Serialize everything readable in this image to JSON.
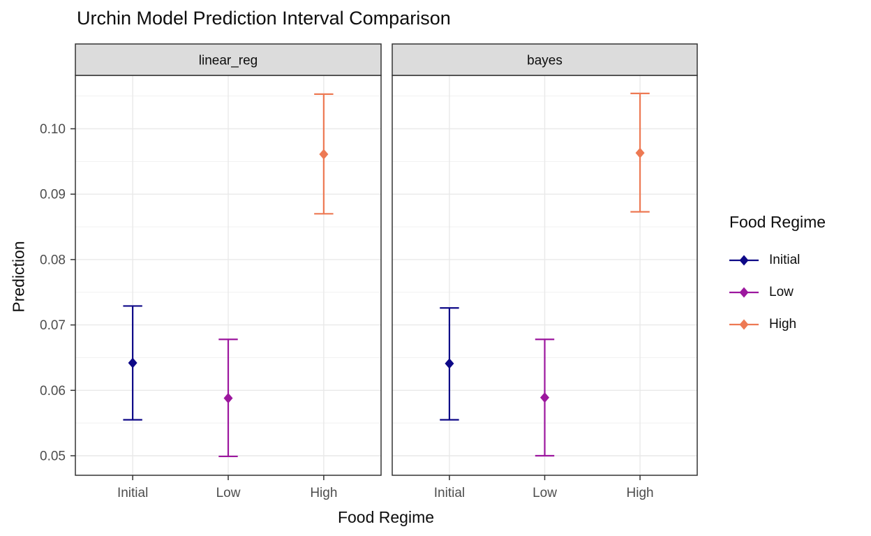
{
  "title": "Urchin Model Prediction Interval Comparison",
  "axes": {
    "x": {
      "title": "Food Regime",
      "categories": [
        "Initial",
        "Low",
        "High"
      ]
    },
    "y": {
      "title": "Prediction",
      "tick_labels": [
        "0.05",
        "0.06",
        "0.07",
        "0.08",
        "0.09",
        "0.10"
      ],
      "tick_values": [
        0.05,
        0.06,
        0.07,
        0.08,
        0.09,
        0.1
      ],
      "minor_values": [
        0.055,
        0.065,
        0.075,
        0.085,
        0.095,
        0.105
      ]
    }
  },
  "legend": {
    "title": "Food Regime",
    "items": [
      {
        "label": "Initial",
        "color": "#0D0887"
      },
      {
        "label": "Low",
        "color": "#9C179E"
      },
      {
        "label": "High",
        "color": "#ED7953"
      }
    ]
  },
  "chart_data": {
    "type": "scatter",
    "subtype": "point-with-errorbar",
    "title": "Urchin Model Prediction Interval Comparison",
    "xlabel": "Food Regime",
    "ylabel": "Prediction",
    "ylim": [
      0.047,
      0.108
    ],
    "grid": true,
    "legend_position": "right",
    "categories": [
      "Initial",
      "Low",
      "High"
    ],
    "facets": [
      {
        "label": "linear_reg",
        "points": [
          {
            "category": "Initial",
            "color": "#0D0887",
            "pred": 0.0642,
            "lower": 0.0555,
            "upper": 0.0729
          },
          {
            "category": "Low",
            "color": "#9C179E",
            "pred": 0.0588,
            "lower": 0.0499,
            "upper": 0.0678
          },
          {
            "category": "High",
            "color": "#ED7953",
            "pred": 0.0961,
            "lower": 0.087,
            "upper": 0.1053
          }
        ]
      },
      {
        "label": "bayes",
        "points": [
          {
            "category": "Initial",
            "color": "#0D0887",
            "pred": 0.0641,
            "lower": 0.0555,
            "upper": 0.0726
          },
          {
            "category": "Low",
            "color": "#9C179E",
            "pred": 0.0589,
            "lower": 0.05,
            "upper": 0.0678
          },
          {
            "category": "High",
            "color": "#ED7953",
            "pred": 0.0963,
            "lower": 0.0873,
            "upper": 0.1054
          }
        ]
      }
    ]
  },
  "style_colors": {
    "strip_fill": "#DCDCDC",
    "strip_border": "#333333",
    "panel_border": "#333333",
    "grid_major": "#E9E9E9",
    "grid_minor": "#F1F1F1",
    "tick_label": "#4D4D4D",
    "tick_mark": "#333333",
    "text": "#0d0d0d"
  }
}
